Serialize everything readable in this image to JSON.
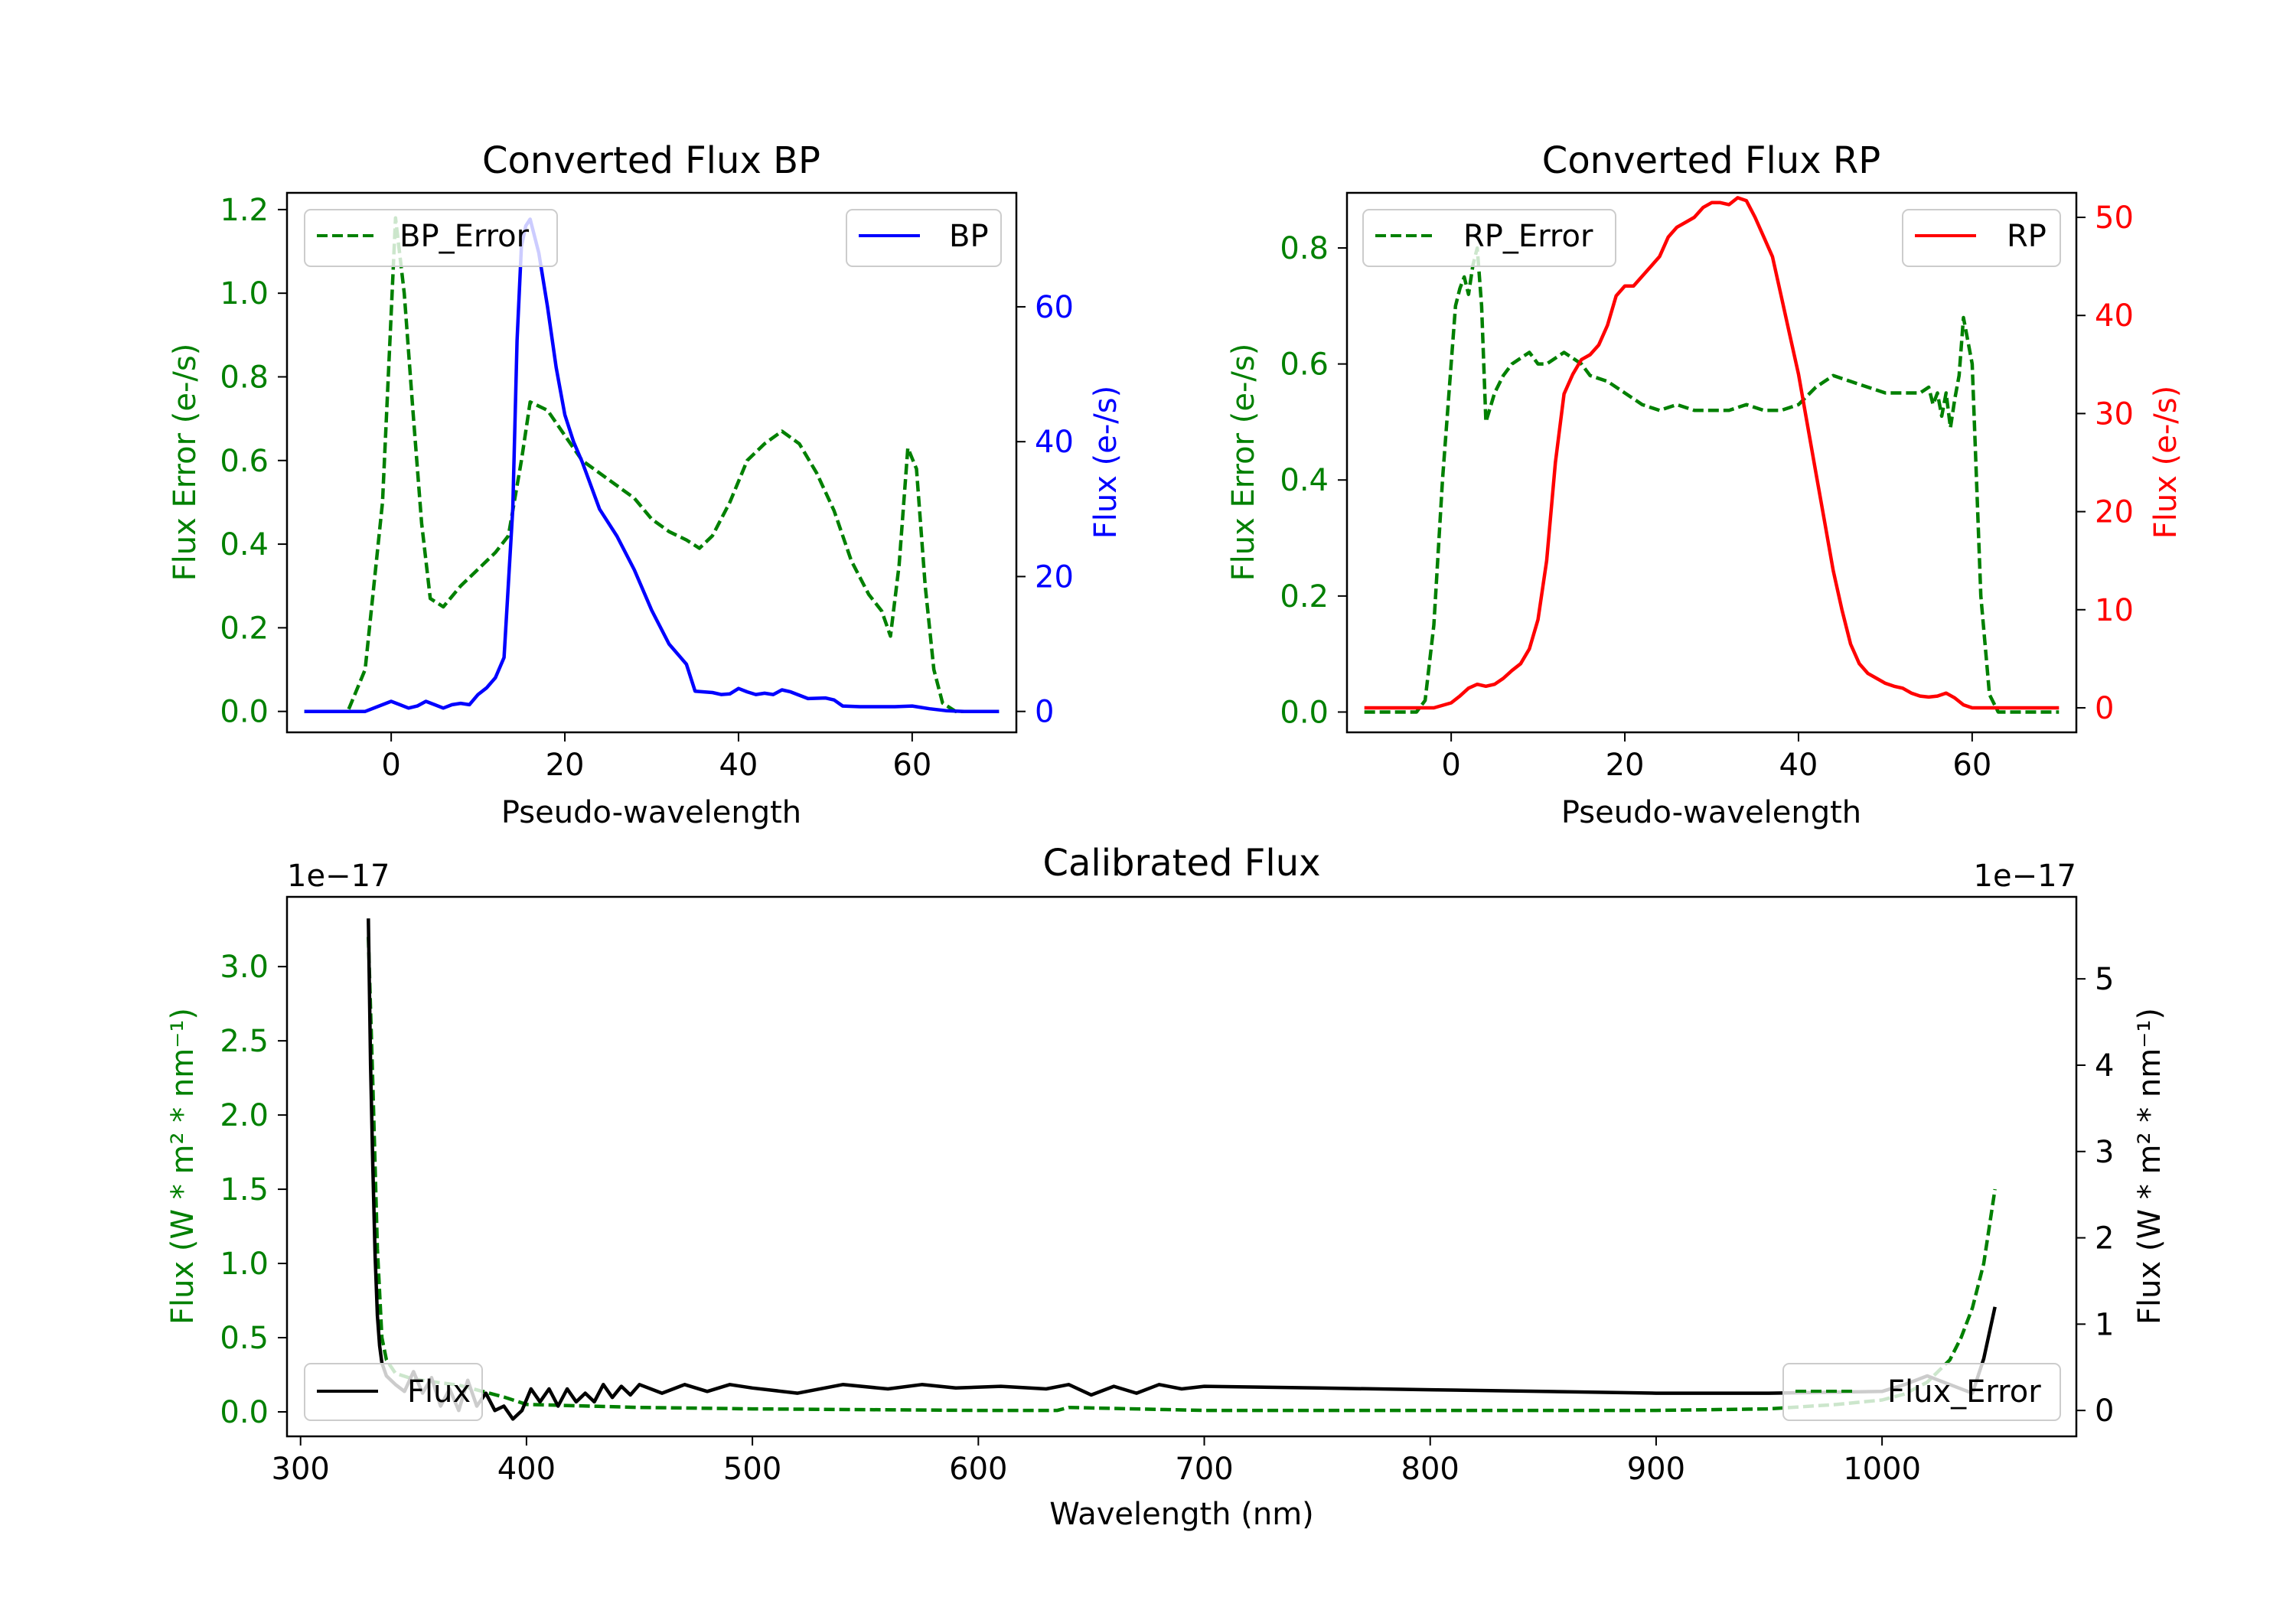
{
  "chart_data": [
    {
      "type": "line",
      "title": "Converted Flux BP",
      "xlabel": "Pseudo-wavelength",
      "ylabel_left": "Flux Error (e-/s)",
      "ylabel_right": "Flux (e-/s)",
      "xlim": [
        -12,
        72
      ],
      "ylim_left": [
        -0.05,
        1.24
      ],
      "ylim_right": [
        -3.1,
        76.9
      ],
      "xticks": [
        0,
        20,
        40,
        60
      ],
      "xtick_labels": [
        "0",
        "20",
        "40",
        "60"
      ],
      "yticks_left": [
        0.0,
        0.2,
        0.4,
        0.6,
        0.8,
        1.0,
        1.2
      ],
      "ytick_labels_left": [
        "0.0",
        "0.2",
        "0.4",
        "0.6",
        "0.8",
        "1.0",
        "1.2"
      ],
      "yticks_right": [
        0,
        20,
        40,
        60
      ],
      "ytick_labels_right": [
        "0",
        "20",
        "40",
        "60"
      ],
      "legend_left": {
        "label": "BP_Error",
        "placement": "upper-left"
      },
      "legend_right": {
        "label": "BP",
        "placement": "upper-right"
      },
      "series": [
        {
          "name": "BP_Error",
          "axis": "left",
          "color": "#008000",
          "style": "dashed",
          "x": [
            -10,
            -5,
            -3,
            -1,
            0,
            0.5,
            1.5,
            2.5,
            3.5,
            4.5,
            6,
            8,
            10,
            12,
            13.5,
            15,
            16,
            18,
            20,
            22,
            24,
            26,
            28,
            30,
            32,
            34,
            35.5,
            37,
            39,
            41,
            43,
            45,
            47,
            49,
            51,
            53,
            55,
            56.5,
            57.5,
            58.5,
            59.5,
            60.5,
            61.5,
            62.5,
            63.5,
            65,
            67,
            70
          ],
          "y": [
            0.0,
            0.0,
            0.1,
            0.5,
            0.95,
            1.18,
            1.0,
            0.72,
            0.45,
            0.27,
            0.25,
            0.3,
            0.34,
            0.38,
            0.42,
            0.6,
            0.74,
            0.72,
            0.66,
            0.6,
            0.57,
            0.54,
            0.51,
            0.46,
            0.43,
            0.41,
            0.39,
            0.42,
            0.5,
            0.6,
            0.64,
            0.67,
            0.64,
            0.57,
            0.48,
            0.36,
            0.28,
            0.24,
            0.18,
            0.35,
            0.63,
            0.58,
            0.3,
            0.1,
            0.02,
            0.0,
            0.0,
            0.0
          ]
        },
        {
          "name": "BP",
          "axis": "right",
          "color": "#0000ff",
          "style": "solid",
          "x": [
            -10,
            -5,
            -3,
            -1,
            0,
            1,
            2,
            3,
            4,
            5,
            6,
            7,
            8,
            9,
            10,
            11,
            12,
            13,
            14,
            14.5,
            15,
            15.5,
            16,
            17,
            18,
            19,
            20,
            21,
            22,
            24,
            26,
            28,
            30,
            32,
            34,
            35,
            37,
            38,
            39,
            40,
            41,
            42,
            43,
            44,
            45,
            46,
            48,
            50,
            51,
            52,
            54,
            56,
            58,
            60,
            62,
            64,
            66,
            68,
            70
          ],
          "y": [
            0,
            0,
            0,
            1,
            1.5,
            1,
            0.5,
            0.8,
            1.5,
            1,
            0.5,
            1,
            1.2,
            1,
            2.5,
            3.5,
            5,
            8,
            30,
            55,
            69,
            72,
            73,
            68,
            60,
            51,
            44,
            40,
            37,
            30,
            26,
            21,
            15,
            10,
            7,
            3,
            2.8,
            2.5,
            2.6,
            3.4,
            2.9,
            2.5,
            2.7,
            2.5,
            3.2,
            2.9,
            1.9,
            2.0,
            1.7,
            0.8,
            0.7,
            0.7,
            0.7,
            0.8,
            0.4,
            0.1,
            0,
            0,
            0
          ]
        }
      ]
    },
    {
      "type": "line",
      "title": "Converted Flux RP",
      "xlabel": "Pseudo-wavelength",
      "ylabel_left": "Flux Error (e-/s)",
      "ylabel_right": "Flux (e-/s)",
      "xlim": [
        -12,
        72
      ],
      "ylim_left": [
        -0.035,
        0.895
      ],
      "ylim_right": [
        -2.5,
        52.5
      ],
      "xticks": [
        0,
        20,
        40,
        60
      ],
      "xtick_labels": [
        "0",
        "20",
        "40",
        "60"
      ],
      "yticks_left": [
        0.0,
        0.2,
        0.4,
        0.6,
        0.8
      ],
      "ytick_labels_left": [
        "0.0",
        "0.2",
        "0.4",
        "0.6",
        "0.8"
      ],
      "yticks_right": [
        0,
        10,
        20,
        30,
        40,
        50
      ],
      "ytick_labels_right": [
        "0",
        "10",
        "20",
        "30",
        "40",
        "50"
      ],
      "legend_left": {
        "label": "RP_Error",
        "placement": "upper-left"
      },
      "legend_right": {
        "label": "RP",
        "placement": "upper-right"
      },
      "series": [
        {
          "name": "RP_Error",
          "axis": "left",
          "color": "#008000",
          "style": "dashed",
          "x": [
            -10,
            -4,
            -3,
            -2,
            -1,
            0,
            0.5,
            1,
            1.5,
            2,
            2.5,
            3,
            3.5,
            4,
            5,
            6,
            7,
            8,
            9,
            10,
            11,
            12,
            13,
            14,
            15,
            16,
            18,
            20,
            22,
            24,
            26,
            28,
            30,
            32,
            34,
            36,
            38,
            40,
            42,
            43,
            44,
            46,
            48,
            50,
            52,
            54,
            55,
            55.5,
            56,
            56.5,
            57,
            57.5,
            58,
            58.5,
            59,
            60,
            61,
            62,
            63,
            64,
            66,
            70
          ],
          "y": [
            0,
            0,
            0.02,
            0.15,
            0.4,
            0.6,
            0.7,
            0.73,
            0.75,
            0.72,
            0.77,
            0.8,
            0.7,
            0.5,
            0.55,
            0.58,
            0.6,
            0.61,
            0.62,
            0.6,
            0.6,
            0.61,
            0.62,
            0.61,
            0.6,
            0.58,
            0.57,
            0.55,
            0.53,
            0.52,
            0.53,
            0.52,
            0.52,
            0.52,
            0.53,
            0.52,
            0.52,
            0.53,
            0.56,
            0.57,
            0.58,
            0.57,
            0.56,
            0.55,
            0.55,
            0.55,
            0.56,
            0.53,
            0.55,
            0.51,
            0.55,
            0.49,
            0.54,
            0.58,
            0.68,
            0.6,
            0.2,
            0.03,
            0,
            0,
            0,
            0
          ]
        },
        {
          "name": "RP",
          "axis": "right",
          "color": "#ff0000",
          "style": "solid",
          "x": [
            -10,
            -4,
            -2,
            0,
            1,
            2,
            3,
            4,
            5,
            6,
            7,
            8,
            9,
            10,
            11,
            12,
            13,
            14,
            15,
            16,
            17,
            18,
            19,
            20,
            21,
            22,
            23,
            24,
            25,
            26,
            27,
            28,
            29,
            30,
            31,
            32,
            33,
            34,
            35,
            36,
            37,
            38,
            39,
            40,
            41,
            42,
            43,
            44,
            45,
            46,
            47,
            48,
            49,
            50,
            51,
            52,
            53,
            54,
            55,
            56,
            57,
            58,
            59,
            60,
            62,
            64,
            70
          ],
          "y": [
            0,
            0,
            0,
            0.5,
            1.2,
            2.0,
            2.4,
            2.2,
            2.4,
            3.0,
            3.8,
            4.5,
            6,
            9,
            15,
            25,
            32,
            34,
            35.5,
            36,
            37,
            39,
            42,
            43,
            43,
            44,
            45,
            46,
            48,
            49,
            49.5,
            50,
            51,
            51.5,
            51.5,
            51.3,
            52,
            51.7,
            50,
            48,
            46,
            42,
            38,
            34,
            29,
            24,
            19,
            14,
            10,
            6.5,
            4.5,
            3.5,
            3.0,
            2.5,
            2.2,
            2.0,
            1.5,
            1.2,
            1.1,
            1.2,
            1.5,
            1.0,
            0.3,
            0,
            0,
            0,
            0
          ]
        }
      ]
    },
    {
      "type": "line",
      "title": "Calibrated Flux",
      "xlabel": "Wavelength (nm)",
      "ylabel_left": "Flux (W * m² * nm⁻¹)",
      "ylabel_right": "Flux (W * m² * nm⁻¹)",
      "offset_left": "1e−17",
      "offset_right": "1e−17",
      "xlim": [
        294,
        1086
      ],
      "ylim_left": [
        -0.165,
        3.47
      ],
      "ylim_right": [
        -0.3,
        5.95
      ],
      "xticks": [
        300,
        400,
        500,
        600,
        700,
        800,
        900,
        1000
      ],
      "xtick_labels": [
        "300",
        "400",
        "500",
        "600",
        "700",
        "800",
        "900",
        "1000"
      ],
      "yticks_left": [
        0.0,
        0.5,
        1.0,
        1.5,
        2.0,
        2.5,
        3.0
      ],
      "ytick_labels_left": [
        "0.0",
        "0.5",
        "1.0",
        "1.5",
        "2.0",
        "2.5",
        "3.0"
      ],
      "yticks_right": [
        0,
        1,
        2,
        3,
        4,
        5
      ],
      "ytick_labels_right": [
        "0",
        "1",
        "2",
        "3",
        "4",
        "5"
      ],
      "legend_left": {
        "label": "Flux",
        "placement": "lower-left"
      },
      "legend_right": {
        "label": "Flux_Error",
        "placement": "lower-right"
      },
      "series": [
        {
          "name": "Flux_Error",
          "axis": "left",
          "color": "#008000",
          "style": "dashed",
          "x": [
            330,
            332,
            334,
            336,
            338,
            342,
            350,
            360,
            370,
            380,
            390,
            400,
            450,
            500,
            550,
            600,
            635,
            640,
            700,
            800,
            900,
            950,
            980,
            1000,
            1010,
            1020,
            1030,
            1035,
            1040,
            1045,
            1050
          ],
          "y": [
            3.2,
            2.2,
            1.1,
            0.5,
            0.35,
            0.26,
            0.22,
            0.2,
            0.18,
            0.14,
            0.1,
            0.05,
            0.03,
            0.02,
            0.015,
            0.01,
            0.01,
            0.03,
            0.01,
            0.01,
            0.01,
            0.02,
            0.05,
            0.08,
            0.12,
            0.2,
            0.35,
            0.5,
            0.7,
            1.0,
            1.5
          ]
        },
        {
          "name": "Flux",
          "axis": "right",
          "color": "#000000",
          "style": "solid",
          "x": [
            330,
            331,
            332,
            333,
            334,
            335,
            336,
            338,
            342,
            346,
            350,
            354,
            358,
            362,
            366,
            370,
            374,
            378,
            382,
            386,
            390,
            394,
            398,
            402,
            406,
            410,
            414,
            418,
            422,
            426,
            430,
            434,
            438,
            442,
            446,
            450,
            460,
            470,
            480,
            490,
            500,
            520,
            540,
            560,
            575,
            590,
            610,
            630,
            640,
            650,
            660,
            670,
            680,
            690,
            700,
            750,
            800,
            850,
            900,
            950,
            1000,
            1010,
            1020,
            1030,
            1040,
            1045,
            1050
          ],
          "y": [
            5.7,
            4.0,
            2.8,
            1.8,
            1.1,
            0.75,
            0.55,
            0.4,
            0.3,
            0.22,
            0.45,
            0.2,
            0.38,
            0.05,
            0.25,
            0.0,
            0.35,
            0.05,
            0.2,
            0.0,
            0.05,
            -0.1,
            0.0,
            0.25,
            0.1,
            0.25,
            0.05,
            0.25,
            0.1,
            0.2,
            0.1,
            0.3,
            0.15,
            0.28,
            0.18,
            0.3,
            0.2,
            0.3,
            0.22,
            0.3,
            0.26,
            0.2,
            0.3,
            0.25,
            0.3,
            0.26,
            0.28,
            0.25,
            0.3,
            0.18,
            0.28,
            0.2,
            0.3,
            0.25,
            0.28,
            0.26,
            0.24,
            0.22,
            0.2,
            0.2,
            0.22,
            0.3,
            0.4,
            0.3,
            0.2,
            0.6,
            1.2
          ]
        }
      ]
    }
  ]
}
